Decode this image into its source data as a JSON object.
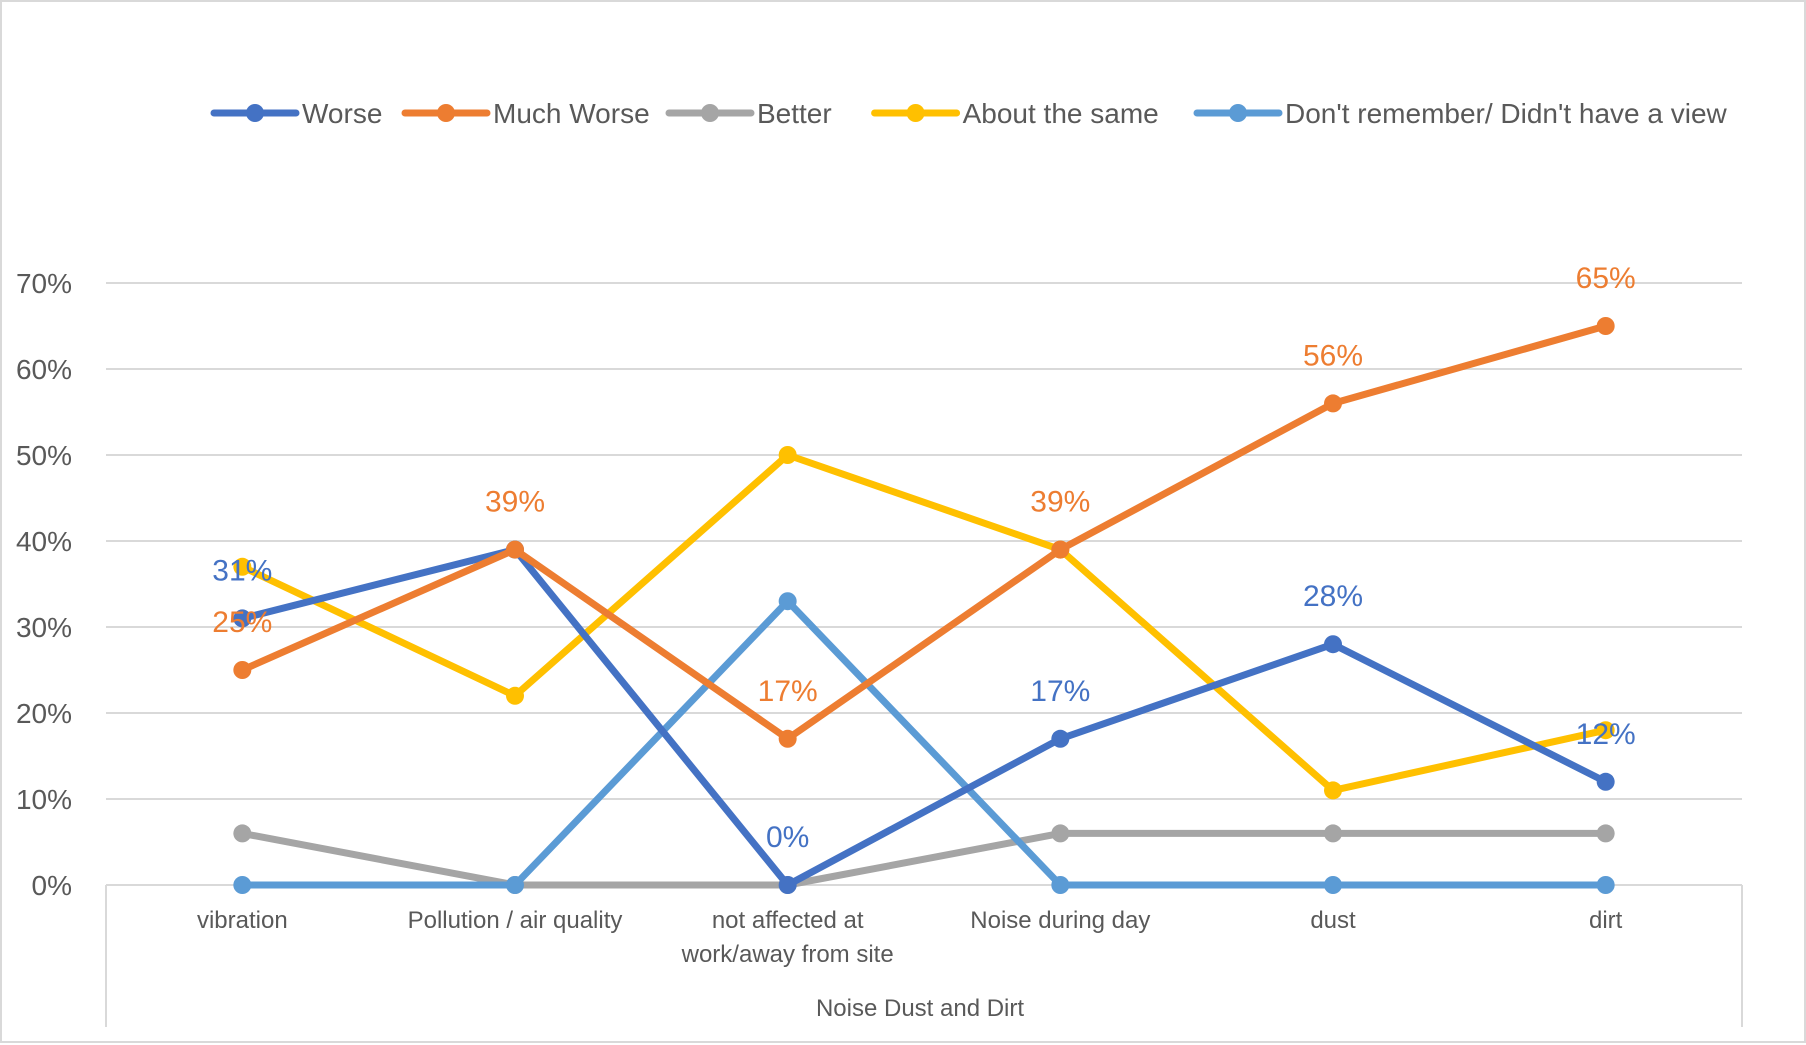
{
  "chart_data": {
    "type": "line",
    "title": "",
    "xlabel": "Noise Dust  and Dirt",
    "ylabel": "",
    "categories": [
      [
        "vibration"
      ],
      [
        "Pollution / air quality"
      ],
      [
        "not affected at",
        "work/away from site"
      ],
      [
        "Noise during day"
      ],
      [
        "dust"
      ],
      [
        "dirt"
      ]
    ],
    "ylim": [
      0,
      0.7
    ],
    "yticks": [
      0,
      0.1,
      0.2,
      0.3,
      0.4,
      0.5,
      0.6,
      0.7
    ],
    "ytick_labels": [
      "0%",
      "10%",
      "20%",
      "30%",
      "40%",
      "50%",
      "60%",
      "70%"
    ],
    "grid": true,
    "legend_position": "top",
    "series": [
      {
        "name": "Worse",
        "color": "#4472C4",
        "values": [
          0.31,
          0.39,
          0.0,
          0.17,
          0.28,
          0.12
        ],
        "labels": [
          "31%",
          "",
          "0%",
          "17%",
          "28%",
          "12%"
        ]
      },
      {
        "name": "Much Worse",
        "color": "#ED7D31",
        "values": [
          0.25,
          0.39,
          0.17,
          0.39,
          0.56,
          0.65
        ],
        "labels": [
          "25%",
          "39%",
          "17%",
          "39%",
          "56%",
          "65%"
        ]
      },
      {
        "name": "Better",
        "color": "#A5A5A5",
        "values": [
          0.06,
          0.0,
          0.0,
          0.06,
          0.06,
          0.06
        ],
        "labels": [
          "",
          "",
          "",
          "",
          "",
          ""
        ]
      },
      {
        "name": "About the same",
        "color": "#FFC000",
        "values": [
          0.37,
          0.22,
          0.5,
          0.39,
          0.11,
          0.18
        ],
        "labels": [
          "",
          "",
          "",
          "",
          "",
          ""
        ]
      },
      {
        "name": "Don't remember/ Didn't have a view",
        "color": "#5B9BD5",
        "values": [
          0.0,
          0.0,
          0.33,
          0.0,
          0.0,
          0.0
        ],
        "labels": [
          "",
          "",
          "",
          "",
          "",
          ""
        ]
      }
    ]
  }
}
